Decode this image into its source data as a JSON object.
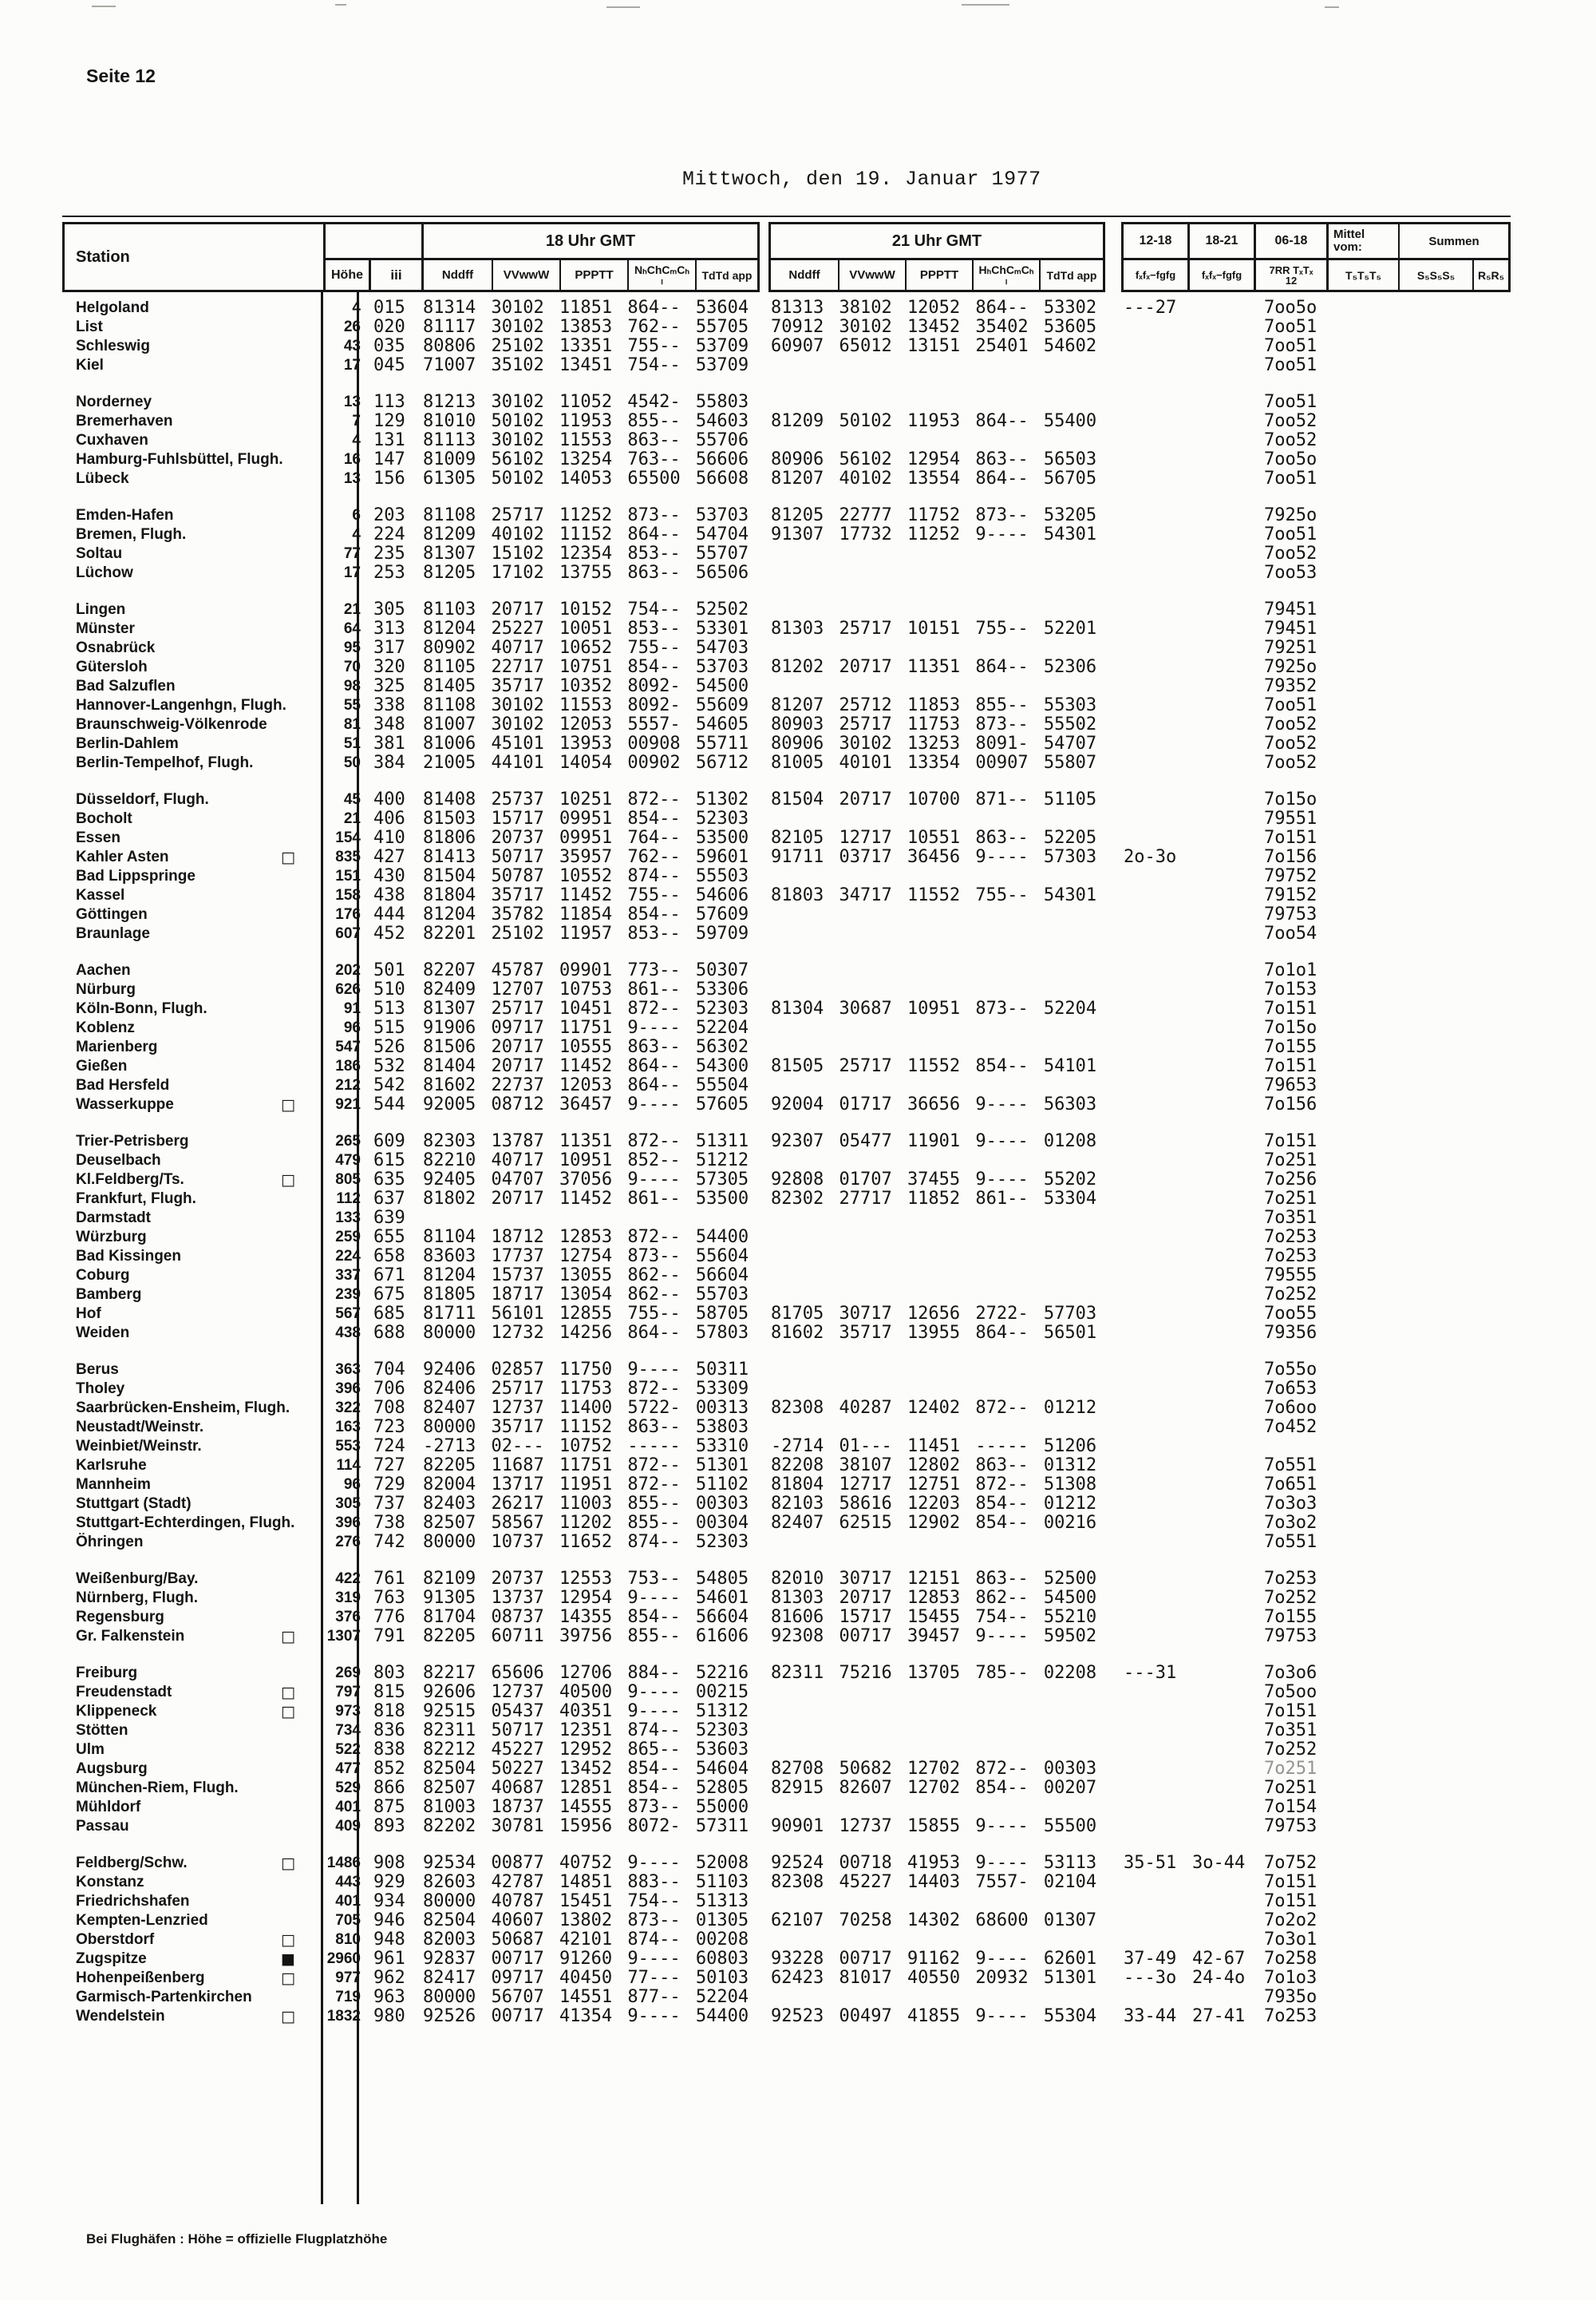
{
  "colors": {
    "ink": "#141414",
    "paper": "#fcfcfa"
  },
  "page": {
    "label": "Seite 12",
    "title": "Mittwoch, den 19. Januar 1977",
    "footer": "Bei Flughäfen :  Höhe = offizielle Flugplatzhöhe"
  },
  "header": {
    "station": "Station",
    "hoehe": "Höhe",
    "iii": "iii",
    "g18": "18 Uhr GMT",
    "g21": "21 Uhr GMT",
    "sub18": [
      "Nddff",
      "VVwwW",
      "PPPTT",
      "NₕChCₘCₕ\nₗ",
      "TdTd app"
    ],
    "sub21": [
      "Nddff",
      "VVwwW",
      "PPPTT",
      "HₕChCₘCₕ\nₗ",
      "TdTd app"
    ],
    "cols": [
      "12-18",
      "18-21",
      "06-18"
    ],
    "mittel": "Mittel\nvom:",
    "summen": "Summen",
    "sub_right": [
      "fₓfₓ−fgfg",
      "fₓfₓ−fgfg",
      "7RR TₓTₓ\n12",
      "T₅T₅T₅",
      "S₅S₅S₅",
      "R₅R₅"
    ]
  },
  "table": {
    "blocks": [
      [
        {
          "name": "Helgoland",
          "h": "4",
          "iii": "015",
          "a": "81314 30102 11851 864-- 53604",
          "b": "81313 38102 12052 864-- 53302",
          "x": "---27",
          "z": "7oo5o"
        },
        {
          "name": "List",
          "h": "26",
          "iii": "020",
          "a": "81117 30102 13853 762-- 55705",
          "b": "70912 30102 13452 35402 53605",
          "z": "7oo51"
        },
        {
          "name": "Schleswig",
          "h": "43",
          "iii": "035",
          "a": "80806 25102 13351 755-- 53709",
          "b": "60907 65012 13151 25401 54602",
          "z": "7oo51"
        },
        {
          "name": "Kiel",
          "h": "17",
          "iii": "045",
          "a": "71007 35102 13451 754-- 53709",
          "z": "7oo51"
        }
      ],
      [
        {
          "name": "Norderney",
          "h": "13",
          "iii": "113",
          "a": "81213 30102 11052 4542- 55803",
          "z": "7oo51"
        },
        {
          "name": "Bremerhaven",
          "h": "7",
          "iii": "129",
          "a": "81010 50102 11953 855-- 54603",
          "b": "81209 50102 11953 864-- 55400",
          "z": "7oo52"
        },
        {
          "name": "Cuxhaven",
          "h": "4",
          "iii": "131",
          "a": "81113 30102 11553 863-- 55706",
          "z": "7oo52"
        },
        {
          "name": "Hamburg-Fuhlsbüttel, Flugh.",
          "h": "16",
          "iii": "147",
          "a": "81009 56102 13254 763-- 56606",
          "b": "80906 56102 12954 863-- 56503",
          "z": "7oo5o"
        },
        {
          "name": "Lübeck",
          "h": "13",
          "iii": "156",
          "a": "61305 50102 14053 65500 56608",
          "b": "81207 40102 13554 864-- 56705",
          "z": "7oo51"
        }
      ],
      [
        {
          "name": "Emden-Hafen",
          "h": "6",
          "iii": "203",
          "a": "81108 25717 11252 873-- 53703",
          "b": "81205 22777 11752 873-- 53205",
          "z": "7925o"
        },
        {
          "name": "Bremen, Flugh.",
          "h": "4",
          "iii": "224",
          "a": "81209 40102 11152 864-- 54704",
          "b": "91307 17732 11252 9---- 54301",
          "z": "7oo51"
        },
        {
          "name": "Soltau",
          "h": "77",
          "iii": "235",
          "a": "81307 15102 12354 853-- 55707",
          "z": "7oo52"
        },
        {
          "name": "Lüchow",
          "h": "17",
          "iii": "253",
          "a": "81205 17102 13755 863-- 56506",
          "z": "7oo53"
        }
      ],
      [
        {
          "name": "Lingen",
          "h": "21",
          "iii": "305",
          "a": "81103 20717 10152 754-- 52502",
          "z": "79451"
        },
        {
          "name": "Münster",
          "h": "64",
          "iii": "313",
          "a": "81204 25227 10051 853-- 53301",
          "b": "81303 25717 10151 755-- 52201",
          "z": "79451"
        },
        {
          "name": "Osnabrück",
          "h": "95",
          "iii": "317",
          "a": "80902 40717 10652 755-- 54703",
          "z": "79251"
        },
        {
          "name": "Gütersloh",
          "h": "70",
          "iii": "320",
          "a": "81105 22717 10751 854-- 53703",
          "b": "81202 20717 11351 864-- 52306",
          "z": "7925o"
        },
        {
          "name": "Bad Salzuflen",
          "h": "98",
          "iii": "325",
          "a": "81405 35717 10352 8092- 54500",
          "z": "79352"
        },
        {
          "name": "Hannover-Langenhgn, Flugh.",
          "h": "55",
          "iii": "338",
          "a": "81108 30102 11553 8092- 55609",
          "b": "81207 25712 11853 855-- 55303",
          "z": "7oo51"
        },
        {
          "name": "Braunschweig-Völkenrode",
          "h": "81",
          "iii": "348",
          "a": "81007 30102 12053 5557- 54605",
          "b": "80903 25717 11753 873-- 55502",
          "z": "7oo52"
        },
        {
          "name": "Berlin-Dahlem",
          "h": "51",
          "iii": "381",
          "a": "81006 45101 13953 00908 55711",
          "b": "80906 30102 13253 8091- 54707",
          "z": "7oo52"
        },
        {
          "name": "Berlin-Tempelhof, Flugh.",
          "h": "50",
          "iii": "384",
          "a": "21005 44101 14054 00902 56712",
          "b": "81005 40101 13354 00907 55807",
          "z": "7oo52"
        }
      ],
      [
        {
          "name": "Düsseldorf, Flugh.",
          "h": "45",
          "iii": "400",
          "a": "81408 25737 10251 872-- 51302",
          "b": "81504 20717 10700 871-- 51105",
          "z": "7o15o"
        },
        {
          "name": "Bocholt",
          "h": "21",
          "iii": "406",
          "a": "81503 15717 09951 854-- 52303",
          "z": "79551"
        },
        {
          "name": "Essen",
          "h": "154",
          "iii": "410",
          "a": "81806 20737 09951 764-- 53500",
          "b": "82105 12717 10551 863-- 52205",
          "z": "7o151"
        },
        {
          "name": "Kahler Asten",
          "sym": "□",
          "h": "835",
          "iii": "427",
          "a": "81413 50717 35957 762-- 59601",
          "b": "91711 03717 36456 9---- 57303",
          "x": "2o-3o",
          "z": "7o156"
        },
        {
          "name": "Bad Lippspringe",
          "h": "151",
          "iii": "430",
          "a": "81504 50787 10552 874-- 55503",
          "z": "79752"
        },
        {
          "name": "Kassel",
          "h": "158",
          "iii": "438",
          "a": "81804 35717 11452 755-- 54606",
          "b": "81803 34717 11552 755-- 54301",
          "z": "79152"
        },
        {
          "name": "Göttingen",
          "h": "176",
          "iii": "444",
          "a": "81204 35782 11854 854-- 57609",
          "z": "79753"
        },
        {
          "name": "Braunlage",
          "h": "607",
          "iii": "452",
          "a": "82201 25102 11957 853-- 59709",
          "z": "7oo54"
        }
      ],
      [
        {
          "name": "Aachen",
          "h": "202",
          "iii": "501",
          "a": "82207 45787 09901 773-- 50307",
          "z": "7o1o1"
        },
        {
          "name": "Nürburg",
          "h": "626",
          "iii": "510",
          "a": "82409 12707 10753 861-- 53306",
          "z": "7o153"
        },
        {
          "name": "Köln-Bonn, Flugh.",
          "h": "91",
          "iii": "513",
          "a": "81307 25717 10451 872-- 52303",
          "b": "81304 30687 10951 873-- 52204",
          "z": "7o151"
        },
        {
          "name": "Koblenz",
          "h": "96",
          "iii": "515",
          "a": "91906 09717 11751 9---- 52204",
          "z": "7o15o"
        },
        {
          "name": "Marienberg",
          "h": "547",
          "iii": "526",
          "a": "81506 20717 10555 863-- 56302",
          "z": "7o155"
        },
        {
          "name": "Gießen",
          "h": "186",
          "iii": "532",
          "a": "81404 20717 11452 864-- 54300",
          "b": "81505 25717 11552 854-- 54101",
          "z": "7o151"
        },
        {
          "name": "Bad Hersfeld",
          "h": "212",
          "iii": "542",
          "a": "81602 22737 12053 864-- 55504",
          "z": "79653"
        },
        {
          "name": "Wasserkuppe",
          "sym": "□",
          "h": "921",
          "iii": "544",
          "a": "92005 08712 36457 9---- 57605",
          "b": "92004 01717 36656 9---- 56303",
          "z": "7o156"
        }
      ],
      [
        {
          "name": "Trier-Petrisberg",
          "h": "265",
          "iii": "609",
          "a": "82303 13787 11351 872-- 51311",
          "b": "92307 05477 11901 9---- 01208",
          "z": "7o151"
        },
        {
          "name": "Deuselbach",
          "h": "479",
          "iii": "615",
          "a": "82210 40717 10951 852-- 51212",
          "z": "7o251"
        },
        {
          "name": "Kl.Feldberg/Ts.",
          "sym": "□",
          "h": "805",
          "iii": "635",
          "a": "92405 04707 37056 9---- 57305",
          "b": "92808 01707 37455 9---- 55202",
          "z": "7o256"
        },
        {
          "name": "Frankfurt, Flugh.",
          "h": "112",
          "iii": "637",
          "a": "81802 20717 11452 861-- 53500",
          "b": "82302 27717 11852 861-- 53304",
          "z": "7o251"
        },
        {
          "name": "Darmstadt",
          "h": "133",
          "iii": "639",
          "z": "7o351"
        },
        {
          "name": "Würzburg",
          "h": "259",
          "iii": "655",
          "a": "81104 18712 12853 872-- 54400",
          "z": "7o253"
        },
        {
          "name": "Bad Kissingen",
          "h": "224",
          "iii": "658",
          "a": "83603 17737 12754 873-- 55604",
          "z": "7o253"
        },
        {
          "name": "Coburg",
          "h": "337",
          "iii": "671",
          "a": "81204 15737 13055 862-- 56604",
          "z": "79555"
        },
        {
          "name": "Bamberg",
          "h": "239",
          "iii": "675",
          "a": "81805 18717 13054 862-- 55703",
          "z": "7o252"
        },
        {
          "name": "Hof",
          "h": "567",
          "iii": "685",
          "a": "81711 56101 12855 755-- 58705",
          "b": "81705 30717 12656 2722- 57703",
          "z": "7oo55"
        },
        {
          "name": "Weiden",
          "h": "438",
          "iii": "688",
          "a": "80000 12732 14256 864-- 57803",
          "b": "81602 35717 13955 864-- 56501",
          "z": "79356"
        }
      ],
      [
        {
          "name": "Berus",
          "h": "363",
          "iii": "704",
          "a": "92406 02857 11750 9---- 50311",
          "z": "7o55o"
        },
        {
          "name": "Tholey",
          "h": "396",
          "iii": "706",
          "a": "82406 25717 11753 872-- 53309",
          "z": "7o653"
        },
        {
          "name": "Saarbrücken-Ensheim, Flugh.",
          "h": "322",
          "iii": "708",
          "a": "82407 12737 11400 5722- 00313",
          "b": "82308 40287 12402 872-- 01212",
          "z": "7o6oo"
        },
        {
          "name": "Neustadt/Weinstr.",
          "h": "163",
          "iii": "723",
          "a": "80000 35717 11152 863-- 53803",
          "z": "7o452"
        },
        {
          "name": "Weinbiet/Weinstr.",
          "h": "553",
          "iii": "724",
          "a": "-2713 02--- 10752 ----- 53310",
          "b": "-2714 01--- 11451 ----- 51206"
        },
        {
          "name": "Karlsruhe",
          "h": "114",
          "iii": "727",
          "a": "82205 11687 11751 872-- 51301",
          "b": "82208 38107 12802 863-- 01312",
          "z": "7o551"
        },
        {
          "name": "Mannheim",
          "h": "96",
          "iii": "729",
          "a": "82004 13717 11951 872-- 51102",
          "b": "81804 12717 12751 872-- 51308",
          "z": "7o651"
        },
        {
          "name": "Stuttgart (Stadt)",
          "h": "305",
          "iii": "737",
          "a": "82403 26217 11003 855-- 00303",
          "b": "82103 58616 12203 854-- 01212",
          "z": "7o3o3"
        },
        {
          "name": "Stuttgart-Echterdingen, Flugh.",
          "h": "396",
          "iii": "738",
          "a": "82507 58567 11202 855-- 00304",
          "b": "82407 62515 12902 854-- 00216",
          "z": "7o3o2"
        },
        {
          "name": "Öhringen",
          "h": "276",
          "iii": "742",
          "a": "80000 10737 11652 874-- 52303",
          "z": "7o551"
        }
      ],
      [
        {
          "name": "Weißenburg/Bay.",
          "h": "422",
          "iii": "761",
          "a": "82109 20737 12553 753-- 54805",
          "b": "82010 30717 12151 863-- 52500",
          "z": "7o253"
        },
        {
          "name": "Nürnberg, Flugh.",
          "h": "319",
          "iii": "763",
          "a": "91305 13737 12954 9---- 54601",
          "b": "81303 20717 12853 862-- 54500",
          "z": "7o252"
        },
        {
          "name": "Regensburg",
          "h": "376",
          "iii": "776",
          "a": "81704 08737 14355 854-- 56604",
          "b": "81606 15717 15455 754-- 55210",
          "z": "7o155"
        },
        {
          "name": "Gr. Falkenstein",
          "sym": "□",
          "h": "1307",
          "iii": "791",
          "a": "82205 60711 39756 855-- 61606",
          "b": "92308 00717 39457 9---- 59502",
          "z": "79753"
        }
      ],
      [
        {
          "name": "Freiburg",
          "h": "269",
          "iii": "803",
          "a": "82217 65606 12706 884-- 52216",
          "b": "82311 75216 13705 785-- 02208",
          "x": "---31",
          "z": "7o3o6"
        },
        {
          "name": "Freudenstadt",
          "sym": "□",
          "h": "797",
          "iii": "815",
          "a": "92606 12737 40500 9---- 00215",
          "z": "7o5oo"
        },
        {
          "name": "Klippeneck",
          "sym": "□",
          "h": "973",
          "iii": "818",
          "a": "92515 05437 40351 9---- 51312",
          "z": "7o151"
        },
        {
          "name": "Stötten",
          "h": "734",
          "iii": "836",
          "a": "82311 50717 12351 874-- 52303",
          "z": "7o351"
        },
        {
          "name": "Ulm",
          "h": "522",
          "iii": "838",
          "a": "82212 45227 12952 865-- 53603",
          "z": "7o252"
        },
        {
          "name": "Augsburg",
          "h": "477",
          "iii": "852",
          "a": "82504 50227 13452 854-- 54604",
          "b": "82708 50682 12702 872-- 00303",
          "z": "7o251",
          "faded": true
        },
        {
          "name": "München-Riem, Flugh.",
          "h": "529",
          "iii": "866",
          "a": "82507 40687 12851 854-- 52805",
          "b": "82915 82607 12702 854-- 00207",
          "z": "7o251"
        },
        {
          "name": "Mühldorf",
          "h": "401",
          "iii": "875",
          "a": "81003 18737 14555 873-- 55000",
          "z": "7o154"
        },
        {
          "name": "Passau",
          "h": "409",
          "iii": "893",
          "a": "82202 30781 15956 8072- 57311",
          "b": "90901 12737 15855 9---- 55500",
          "z": "79753"
        }
      ],
      [
        {
          "name": "Feldberg/Schw.",
          "sym": "□",
          "h": "1486",
          "iii": "908",
          "a": "92534 00877 40752 9---- 52008",
          "b": "92524 00718 41953 9---- 53113",
          "x": "35-51",
          "y": "3o-44",
          "z": "7o752"
        },
        {
          "name": "Konstanz",
          "h": "443",
          "iii": "929",
          "a": "82603 42787 14851 883-- 51103",
          "b": "82308 45227 14403 7557- 02104",
          "z": "7o151"
        },
        {
          "name": "Friedrichshafen",
          "h": "401",
          "iii": "934",
          "a": "80000 40787 15451 754-- 51313",
          "z": "7o151"
        },
        {
          "name": "Kempten-Lenzried",
          "h": "705",
          "iii": "946",
          "a": "82504 40607 13802 873-- 01305",
          "b": "62107 70258 14302 68600 01307",
          "z": "7o2o2"
        },
        {
          "name": "Oberstdorf",
          "sym": "□",
          "h": "810",
          "iii": "948",
          "a": "82003 50687 42101 874-- 00208",
          "z": "7o3o1"
        },
        {
          "name": "Zugspitze",
          "sym": "■",
          "h": "2960",
          "iii": "961",
          "a": "92837 00717 91260 9---- 60803",
          "b": "93228 00717 91162 9---- 62601",
          "x": "37-49",
          "y": "42-67",
          "z": "7o258"
        },
        {
          "name": "Hohenpeißenberg",
          "sym": "□",
          "h": "977",
          "iii": "962",
          "a": "82417 09717 40450 77--- 50103",
          "b": "62423 81017 40550 20932 51301",
          "x": "---3o",
          "y": "24-4o",
          "z": "7o1o3"
        },
        {
          "name": "Garmisch-Partenkirchen",
          "h": "719",
          "iii": "963",
          "a": "80000 56707 14551 877-- 52204",
          "z": "7935o"
        },
        {
          "name": "Wendelstein",
          "sym": "□",
          "h": "1832",
          "iii": "980",
          "a": "92526 00717 41354 9---- 54400",
          "b": "92523 00497 41855 9---- 55304",
          "x": "33-44",
          "y": "27-41",
          "z": "7o253"
        }
      ]
    ]
  }
}
